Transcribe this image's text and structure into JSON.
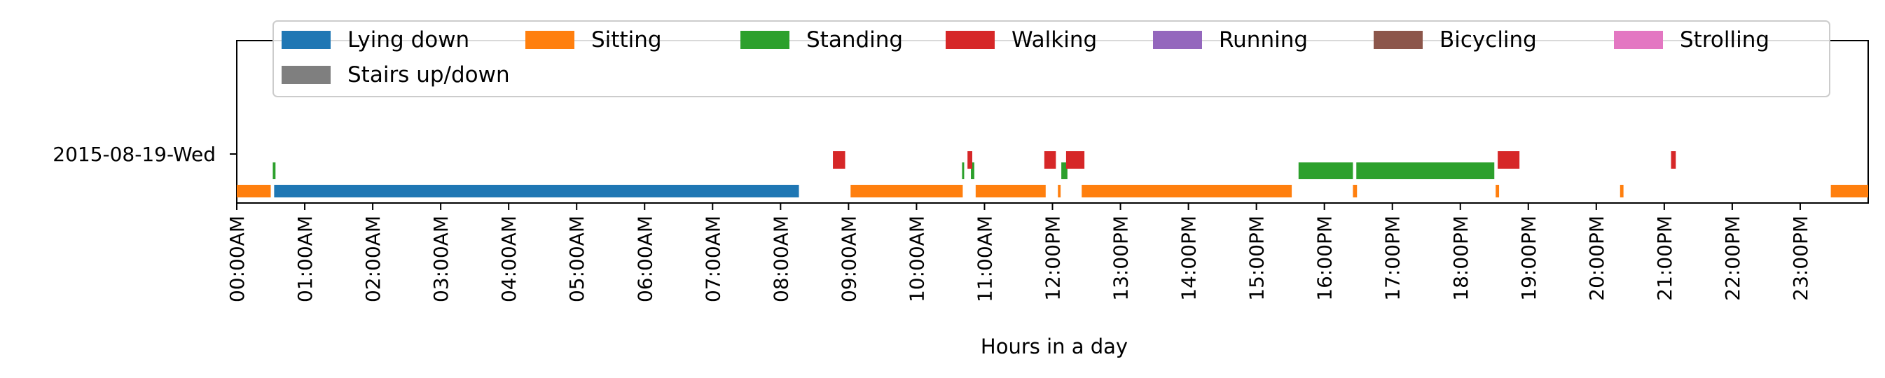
{
  "chart_data": {
    "type": "timeline",
    "title": "",
    "xlabel": "Hours in a day",
    "ylabel": "",
    "xlim": [
      0,
      24
    ],
    "grid": false,
    "legend_position": "top",
    "row_label": "2015-08-19-Wed",
    "x_tick_labels": [
      "00:00AM",
      "01:00AM",
      "02:00AM",
      "03:00AM",
      "04:00AM",
      "05:00AM",
      "06:00AM",
      "07:00AM",
      "08:00AM",
      "09:00AM",
      "10:00AM",
      "11:00AM",
      "12:00PM",
      "13:00PM",
      "14:00PM",
      "15:00PM",
      "16:00PM",
      "17:00PM",
      "18:00PM",
      "19:00PM",
      "20:00PM",
      "21:00PM",
      "22:00PM",
      "23:00PM"
    ],
    "series": [
      {
        "name": "Lying down",
        "color": "#1f77b4",
        "level": "low",
        "intervals": [
          [
            0.55,
            8.27
          ]
        ]
      },
      {
        "name": "Sitting",
        "color": "#ff7f0e",
        "level": "low",
        "intervals": [
          [
            0.0,
            0.5
          ],
          [
            9.03,
            10.68
          ],
          [
            10.87,
            11.9
          ],
          [
            12.08,
            12.12
          ],
          [
            12.43,
            15.52
          ],
          [
            16.42,
            16.48
          ],
          [
            18.52,
            18.57
          ],
          [
            20.35,
            20.4
          ],
          [
            23.45,
            24.0
          ]
        ]
      },
      {
        "name": "Standing",
        "color": "#2ca02c",
        "level": "mid",
        "intervals": [
          [
            0.53,
            0.57
          ],
          [
            10.67,
            10.7
          ],
          [
            10.8,
            10.85
          ],
          [
            12.13,
            12.22
          ],
          [
            15.62,
            16.42
          ],
          [
            16.47,
            18.5
          ]
        ]
      },
      {
        "name": "Walking",
        "color": "#d62728",
        "level": "high",
        "intervals": [
          [
            8.77,
            8.95
          ],
          [
            10.75,
            10.82
          ],
          [
            11.88,
            12.05
          ],
          [
            12.2,
            12.47
          ],
          [
            18.55,
            18.87
          ],
          [
            21.1,
            21.17
          ]
        ]
      },
      {
        "name": "Running",
        "color": "#9467bd",
        "level": "high",
        "intervals": []
      },
      {
        "name": "Bicycling",
        "color": "#8c564b",
        "level": "high",
        "intervals": []
      },
      {
        "name": "Strolling",
        "color": "#e377c2",
        "level": "high",
        "intervals": []
      },
      {
        "name": "Stairs up/down",
        "color": "#7f7f7f",
        "level": "high",
        "intervals": []
      }
    ]
  }
}
